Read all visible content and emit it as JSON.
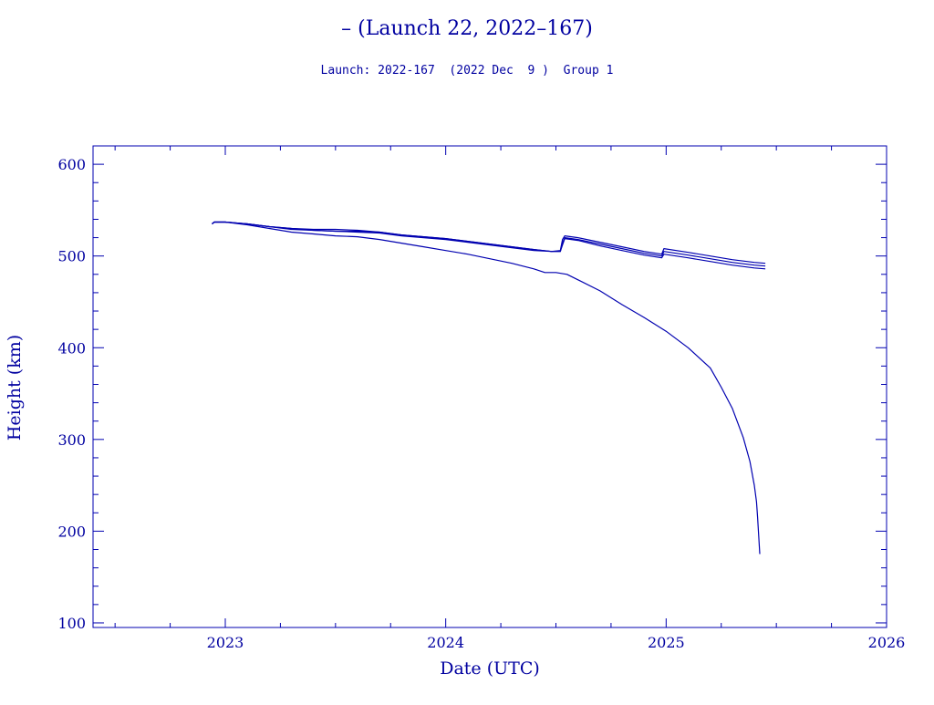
{
  "chart_data": {
    "type": "line",
    "title": "– (Launch 22, 2022–167)",
    "subtitle": "Launch: 2022-167  (2022 Dec  9 )  Group 1",
    "xlabel": "Date (UTC)",
    "ylabel": "Height (km)",
    "xlim": [
      2022.4,
      2026.0
    ],
    "ylim": [
      95,
      620
    ],
    "xticks": [
      2023,
      2024,
      2025,
      2026
    ],
    "xtick_labels": [
      "2023",
      "2024",
      "2025",
      "2026"
    ],
    "yticks": [
      100,
      200,
      300,
      400,
      500,
      600
    ],
    "ytick_labels": [
      "100",
      "200",
      "300",
      "400",
      "500",
      "600"
    ],
    "x_minor_step": 0.25,
    "y_minor_step": 20,
    "grid": false,
    "legend": "none",
    "line_color": "#0000b0",
    "series": [
      {
        "x": [
          2022.94,
          2022.95,
          2023.0,
          2023.1,
          2023.2,
          2023.3,
          2023.4,
          2023.5,
          2023.6,
          2023.7,
          2023.8,
          2023.9,
          2024.0,
          2024.1,
          2024.2,
          2024.3,
          2024.4,
          2024.48,
          2024.52,
          2024.53,
          2024.54,
          2024.6,
          2024.7,
          2024.8,
          2024.9,
          2024.98,
          2024.99,
          2025.1,
          2025.2,
          2025.3,
          2025.4,
          2025.45
        ],
        "y": [
          535,
          537,
          537,
          535,
          532,
          530,
          529,
          529,
          528,
          526,
          523,
          521,
          519,
          516,
          513,
          510,
          507,
          505,
          506,
          518,
          522,
          520,
          515,
          510,
          505,
          502,
          508,
          504,
          500,
          496,
          493,
          492
        ]
      },
      {
        "x": [
          2022.94,
          2022.95,
          2023.0,
          2023.1,
          2023.2,
          2023.3,
          2023.4,
          2023.5,
          2023.6,
          2023.7,
          2023.8,
          2023.9,
          2024.0,
          2024.1,
          2024.2,
          2024.3,
          2024.4,
          2024.48,
          2024.52,
          2024.53,
          2024.54,
          2024.6,
          2024.7,
          2024.8,
          2024.9,
          2024.98,
          2024.99,
          2025.1,
          2025.2,
          2025.3,
          2025.4,
          2025.45
        ],
        "y": [
          535,
          537,
          537,
          535,
          532,
          530,
          528,
          527,
          527,
          526,
          523,
          521,
          519,
          516,
          513,
          510,
          507,
          505,
          505,
          514,
          520,
          518,
          513,
          508,
          503,
          500,
          505,
          501,
          497,
          493,
          490,
          489
        ]
      },
      {
        "x": [
          2022.94,
          2022.95,
          2023.0,
          2023.1,
          2023.2,
          2023.3,
          2023.4,
          2023.5,
          2023.6,
          2023.7,
          2023.8,
          2023.9,
          2024.0,
          2024.1,
          2024.2,
          2024.3,
          2024.4,
          2024.48,
          2024.52,
          2024.53,
          2024.54,
          2024.6,
          2024.7,
          2024.8,
          2024.9,
          2024.98,
          2024.99,
          2025.1,
          2025.2,
          2025.3,
          2025.4,
          2025.45
        ],
        "y": [
          535,
          537,
          537,
          535,
          532,
          529,
          528,
          527,
          526,
          525,
          522,
          520,
          518,
          515,
          512,
          509,
          506,
          505,
          505,
          512,
          519,
          517,
          511,
          506,
          501,
          498,
          502,
          498,
          494,
          490,
          487,
          486
        ]
      },
      {
        "x": [
          2022.94,
          2022.95,
          2023.0,
          2023.1,
          2023.2,
          2023.3,
          2023.4,
          2023.5,
          2023.6,
          2023.7,
          2023.8,
          2023.9,
          2024.0,
          2024.1,
          2024.2,
          2024.3,
          2024.4,
          2024.45,
          2024.5,
          2024.55,
          2024.6,
          2024.7,
          2024.8,
          2024.9,
          2025.0,
          2025.1,
          2025.2,
          2025.25,
          2025.3,
          2025.35,
          2025.38,
          2025.4,
          2025.41,
          2025.415,
          2025.42,
          2025.425
        ],
        "y": [
          535,
          537,
          537,
          534,
          530,
          526,
          524,
          522,
          521,
          518,
          514,
          510,
          506,
          502,
          497,
          492,
          486,
          482,
          482,
          480,
          474,
          462,
          447,
          433,
          418,
          400,
          378,
          357,
          334,
          302,
          276,
          250,
          232,
          215,
          195,
          175
        ]
      }
    ]
  }
}
